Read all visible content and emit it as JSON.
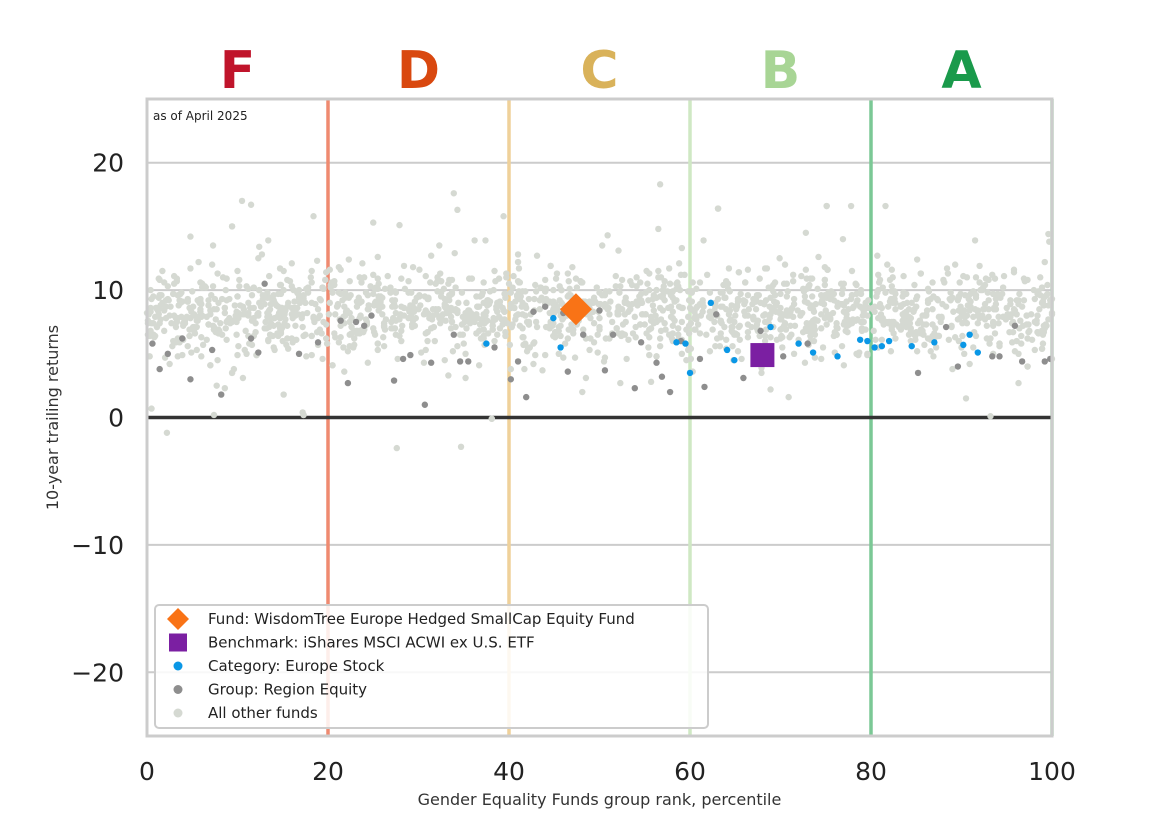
{
  "chart_data": {
    "type": "scatter",
    "title": "",
    "xlabel": "Gender Equality Funds group rank, percentile",
    "ylabel": "10-year trailing returns",
    "xlim": [
      0,
      100
    ],
    "ylim": [
      -25,
      25
    ],
    "xticks": [
      0,
      20,
      40,
      60,
      80,
      100
    ],
    "yticks": [
      -20,
      -10,
      0,
      10,
      20
    ],
    "xtick_labels": [
      "0",
      "20",
      "40",
      "60",
      "80",
      "100"
    ],
    "ytick_labels": [
      "−20",
      "−10",
      "0",
      "10",
      "20"
    ],
    "grid": true,
    "annotation": "as of April 2025",
    "legend_position": "bottom-left",
    "grades": [
      {
        "label": "F",
        "x": 10,
        "color": "#c0142b"
      },
      {
        "label": "D",
        "x": 30,
        "color": "#d9480f"
      },
      {
        "label": "C",
        "x": 50,
        "color": "#d9b25a"
      },
      {
        "label": "B",
        "x": 70,
        "color": "#a8d595"
      },
      {
        "label": "A",
        "x": 90,
        "color": "#1a9a4b"
      }
    ],
    "boundaries": [
      {
        "x": 20,
        "color": "#ef8a70"
      },
      {
        "x": 40,
        "color": "#efd19a"
      },
      {
        "x": 60,
        "color": "#cfe8c4"
      },
      {
        "x": 80,
        "color": "#7bc895"
      },
      {
        "x": 100,
        "color": "#a8d5b0"
      }
    ],
    "series": [
      {
        "name": "Fund: WisdomTree Europe Hedged SmallCap Equity Fund",
        "marker": "diamond",
        "color": "#f97316",
        "points": [
          [
            47.4,
            8.5
          ]
        ]
      },
      {
        "name": "Benchmark: iShares MSCI ACWI ex U.S. ETF",
        "marker": "square",
        "color": "#7b1fa2",
        "points": [
          [
            68,
            4.9
          ]
        ]
      },
      {
        "name": "Category: Europe Stock",
        "marker": "circle",
        "color": "#0a97e6",
        "points": [
          [
            37.5,
            5.8
          ],
          [
            44.9,
            7.8
          ],
          [
            45.7,
            5.5
          ],
          [
            58.5,
            5.9
          ],
          [
            59.5,
            5.8
          ],
          [
            60,
            3.5
          ],
          [
            62.3,
            9
          ],
          [
            64.1,
            5.3
          ],
          [
            64.9,
            4.5
          ],
          [
            68.9,
            7.1
          ],
          [
            72,
            5.8
          ],
          [
            73.6,
            5.1
          ],
          [
            76.3,
            4.8
          ],
          [
            78.8,
            6.1
          ],
          [
            79.6,
            6
          ],
          [
            80.4,
            5.5
          ],
          [
            81.2,
            5.6
          ],
          [
            82,
            6
          ],
          [
            84.5,
            5.6
          ],
          [
            87,
            5.9
          ],
          [
            90.2,
            5.7
          ],
          [
            90.9,
            6.5
          ],
          [
            91.8,
            5.1
          ]
        ]
      },
      {
        "name": "Group: Region Equity",
        "marker": "circle",
        "color": "#8e8e8e",
        "points": [
          [
            0.6,
            5.8
          ],
          [
            1.4,
            3.8
          ],
          [
            2.3,
            5
          ],
          [
            3.9,
            6.2
          ],
          [
            4.8,
            3
          ],
          [
            7.2,
            5.3
          ],
          [
            8.2,
            1.8
          ],
          [
            11.5,
            6.2
          ],
          [
            12.3,
            5.1
          ],
          [
            13,
            10.5
          ],
          [
            16.8,
            5
          ],
          [
            18.9,
            5.9
          ],
          [
            21.4,
            7.6
          ],
          [
            22.2,
            2.7
          ],
          [
            23.1,
            7.5
          ],
          [
            24,
            7.2
          ],
          [
            24.8,
            8
          ],
          [
            27.3,
            2.9
          ],
          [
            28.3,
            4.6
          ],
          [
            29.1,
            4.9
          ],
          [
            30.7,
            1
          ],
          [
            31.4,
            4.3
          ],
          [
            33.9,
            6.5
          ],
          [
            34.6,
            4.4
          ],
          [
            35.5,
            4.4
          ],
          [
            38.4,
            5.5
          ],
          [
            40.2,
            3
          ],
          [
            41,
            4.4
          ],
          [
            41.9,
            1.6
          ],
          [
            42.7,
            8.3
          ],
          [
            44,
            8.7
          ],
          [
            46,
            8.2
          ],
          [
            46.5,
            3.6
          ],
          [
            48.2,
            6.5
          ],
          [
            50,
            8.4
          ],
          [
            50.6,
            3.7
          ],
          [
            51.5,
            6.5
          ],
          [
            53.9,
            2.3
          ],
          [
            54.6,
            5.9
          ],
          [
            56.3,
            4.3
          ],
          [
            56.9,
            3.2
          ],
          [
            57.8,
            2
          ],
          [
            59,
            6
          ],
          [
            61.1,
            4.6
          ],
          [
            61.6,
            2.4
          ],
          [
            62.9,
            8.1
          ],
          [
            65.9,
            3.1
          ],
          [
            67.8,
            6.8
          ],
          [
            70.3,
            4.8
          ],
          [
            73,
            5.8
          ],
          [
            85.2,
            3.5
          ],
          [
            88.3,
            7.1
          ],
          [
            89.6,
            4
          ],
          [
            93.4,
            4.8
          ],
          [
            94.2,
            4.8
          ],
          [
            95.9,
            7.2
          ],
          [
            96.7,
            4.4
          ],
          [
            99.2,
            4.4
          ],
          [
            99.8,
            4.6
          ]
        ]
      },
      {
        "name": "All other funds",
        "marker": "circle",
        "color": "#d5d9d2",
        "points": []
      }
    ]
  }
}
